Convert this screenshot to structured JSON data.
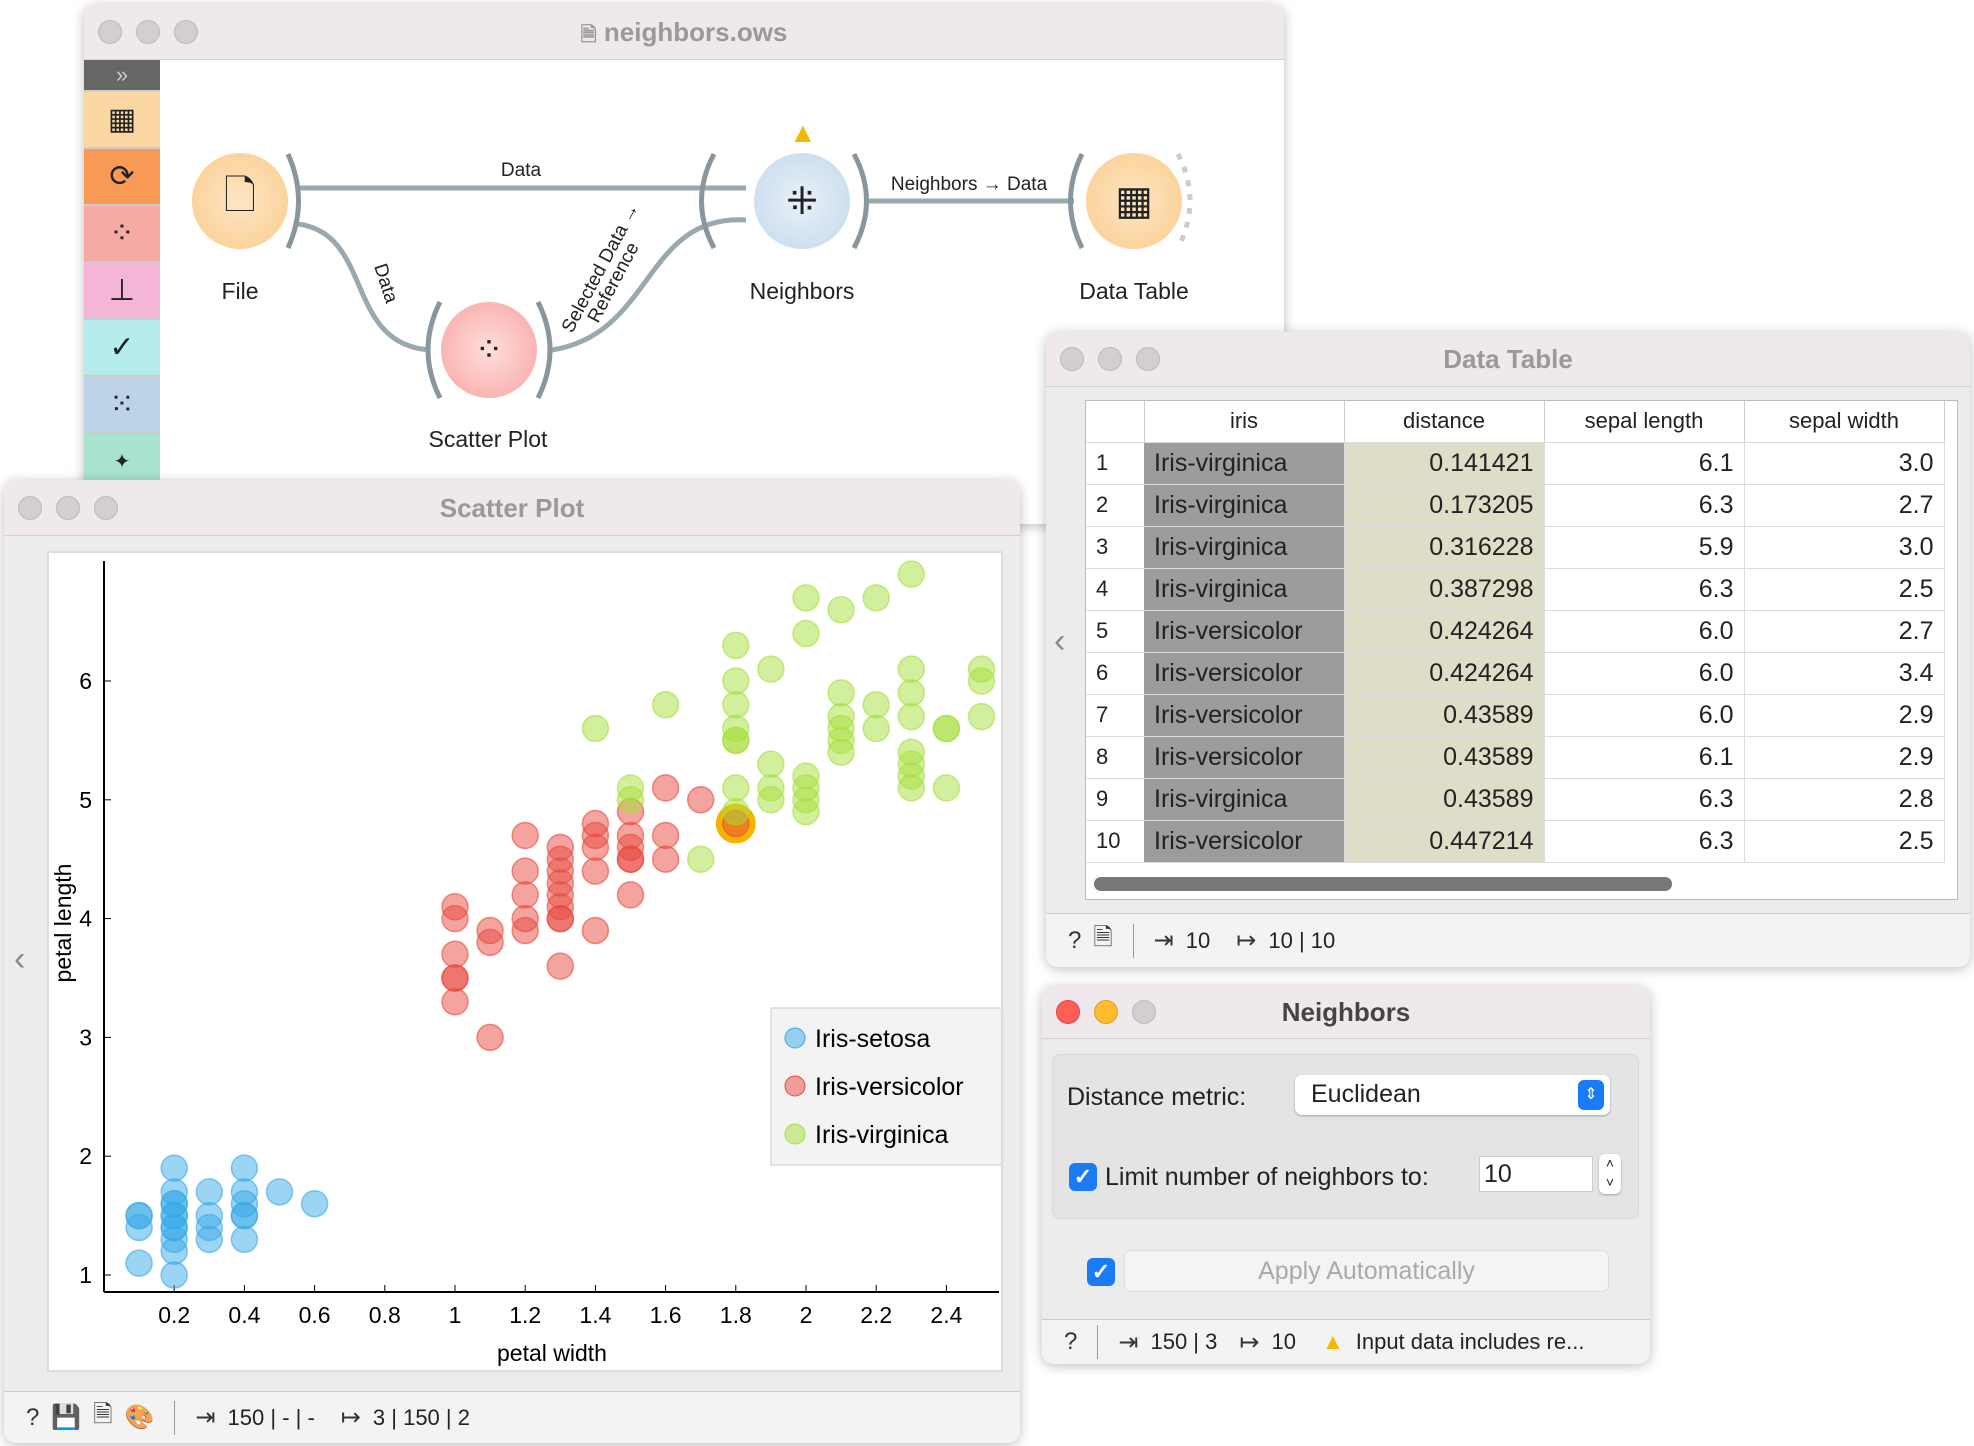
{
  "canvas": {
    "title": "neighbors.ows",
    "nodes": {
      "file": "File",
      "scatter": "Scatter Plot",
      "neighbors": "Neighbors",
      "table": "Data Table"
    },
    "links": {
      "file_neighbors": "Data",
      "file_scatter": "Data",
      "scatter_neighbors_1": "Selected Data →",
      "scatter_neighbors_2": "Reference",
      "neighbors_table": "Neighbors → Data"
    }
  },
  "scatter": {
    "title": "Scatter Plot",
    "footer": {
      "input": "150 | - | -",
      "output": "3 | 150 | 2"
    }
  },
  "chart_data": {
    "type": "scatter",
    "xlabel": "petal width",
    "ylabel": "petal length",
    "xlim": [
      0,
      2.5
    ],
    "ylim": [
      0.9,
      7
    ],
    "xticks": [
      "0.2",
      "0.4",
      "0.6",
      "0.8",
      "1",
      "1.2",
      "1.4",
      "1.6",
      "1.8",
      "2",
      "2.2",
      "2.4"
    ],
    "yticks": [
      "1",
      "2",
      "3",
      "4",
      "5",
      "6"
    ],
    "legend": "bottom-right",
    "highlighted": [
      1.8,
      4.8
    ],
    "series": [
      {
        "name": "Iris-setosa",
        "color": "#3aa9e8",
        "points": [
          [
            0.1,
            1.1
          ],
          [
            0.1,
            1.4
          ],
          [
            0.1,
            1.5
          ],
          [
            0.1,
            1.5
          ],
          [
            0.2,
            1.0
          ],
          [
            0.2,
            1.2
          ],
          [
            0.2,
            1.3
          ],
          [
            0.2,
            1.4
          ],
          [
            0.2,
            1.4
          ],
          [
            0.2,
            1.5
          ],
          [
            0.2,
            1.5
          ],
          [
            0.2,
            1.6
          ],
          [
            0.2,
            1.6
          ],
          [
            0.2,
            1.7
          ],
          [
            0.2,
            1.9
          ],
          [
            0.3,
            1.3
          ],
          [
            0.3,
            1.4
          ],
          [
            0.3,
            1.5
          ],
          [
            0.3,
            1.7
          ],
          [
            0.4,
            1.3
          ],
          [
            0.4,
            1.5
          ],
          [
            0.4,
            1.5
          ],
          [
            0.4,
            1.6
          ],
          [
            0.4,
            1.7
          ],
          [
            0.4,
            1.9
          ],
          [
            0.5,
            1.7
          ],
          [
            0.6,
            1.6
          ]
        ]
      },
      {
        "name": "Iris-versicolor",
        "color": "#e8493d",
        "points": [
          [
            1.0,
            3.3
          ],
          [
            1.0,
            3.5
          ],
          [
            1.0,
            3.5
          ],
          [
            1.0,
            3.7
          ],
          [
            1.0,
            4.0
          ],
          [
            1.0,
            4.1
          ],
          [
            1.1,
            3.0
          ],
          [
            1.1,
            3.8
          ],
          [
            1.1,
            3.9
          ],
          [
            1.2,
            3.9
          ],
          [
            1.2,
            4.0
          ],
          [
            1.2,
            4.2
          ],
          [
            1.2,
            4.4
          ],
          [
            1.2,
            4.7
          ],
          [
            1.3,
            3.6
          ],
          [
            1.3,
            4.0
          ],
          [
            1.3,
            4.0
          ],
          [
            1.3,
            4.1
          ],
          [
            1.3,
            4.2
          ],
          [
            1.3,
            4.3
          ],
          [
            1.3,
            4.4
          ],
          [
            1.3,
            4.5
          ],
          [
            1.3,
            4.6
          ],
          [
            1.4,
            3.9
          ],
          [
            1.4,
            4.4
          ],
          [
            1.4,
            4.6
          ],
          [
            1.4,
            4.7
          ],
          [
            1.4,
            4.8
          ],
          [
            1.5,
            4.2
          ],
          [
            1.5,
            4.5
          ],
          [
            1.5,
            4.5
          ],
          [
            1.5,
            4.6
          ],
          [
            1.5,
            4.7
          ],
          [
            1.5,
            4.9
          ],
          [
            1.6,
            4.5
          ],
          [
            1.6,
            4.7
          ],
          [
            1.6,
            5.1
          ],
          [
            1.7,
            5.0
          ],
          [
            1.8,
            4.8
          ]
        ]
      },
      {
        "name": "Iris-virginica",
        "color": "#a6e03c",
        "points": [
          [
            1.4,
            5.6
          ],
          [
            1.5,
            5.0
          ],
          [
            1.5,
            5.1
          ],
          [
            1.6,
            5.8
          ],
          [
            1.7,
            4.5
          ],
          [
            1.8,
            4.9
          ],
          [
            1.8,
            5.1
          ],
          [
            1.8,
            5.5
          ],
          [
            1.8,
            5.5
          ],
          [
            1.8,
            5.6
          ],
          [
            1.8,
            5.8
          ],
          [
            1.8,
            6.0
          ],
          [
            1.8,
            6.3
          ],
          [
            1.9,
            5.0
          ],
          [
            1.9,
            5.1
          ],
          [
            1.9,
            5.3
          ],
          [
            1.9,
            6.1
          ],
          [
            2.0,
            4.9
          ],
          [
            2.0,
            5.0
          ],
          [
            2.0,
            5.1
          ],
          [
            2.0,
            5.2
          ],
          [
            2.0,
            6.4
          ],
          [
            2.0,
            6.7
          ],
          [
            2.1,
            5.4
          ],
          [
            2.1,
            5.5
          ],
          [
            2.1,
            5.6
          ],
          [
            2.1,
            5.7
          ],
          [
            2.1,
            5.9
          ],
          [
            2.1,
            6.6
          ],
          [
            2.2,
            5.6
          ],
          [
            2.2,
            5.8
          ],
          [
            2.2,
            6.7
          ],
          [
            2.3,
            5.1
          ],
          [
            2.3,
            5.2
          ],
          [
            2.3,
            5.3
          ],
          [
            2.3,
            5.4
          ],
          [
            2.3,
            5.7
          ],
          [
            2.3,
            5.9
          ],
          [
            2.3,
            6.1
          ],
          [
            2.3,
            6.9
          ],
          [
            2.4,
            5.1
          ],
          [
            2.4,
            5.6
          ],
          [
            2.4,
            5.6
          ],
          [
            2.5,
            5.7
          ],
          [
            2.5,
            6.0
          ],
          [
            2.5,
            6.1
          ]
        ]
      }
    ]
  },
  "table": {
    "title": "Data Table",
    "columns": [
      "iris",
      "distance",
      "sepal length",
      "sepal width"
    ],
    "rows": [
      [
        "1",
        "Iris-virginica",
        "0.141421",
        "6.1",
        "3.0"
      ],
      [
        "2",
        "Iris-virginica",
        "0.173205",
        "6.3",
        "2.7"
      ],
      [
        "3",
        "Iris-virginica",
        "0.316228",
        "5.9",
        "3.0"
      ],
      [
        "4",
        "Iris-virginica",
        "0.387298",
        "6.3",
        "2.5"
      ],
      [
        "5",
        "Iris-versicolor",
        "0.424264",
        "6.0",
        "2.7"
      ],
      [
        "6",
        "Iris-versicolor",
        "0.424264",
        "6.0",
        "3.4"
      ],
      [
        "7",
        "Iris-versicolor",
        "0.43589",
        "6.0",
        "2.9"
      ],
      [
        "8",
        "Iris-versicolor",
        "0.43589",
        "6.1",
        "2.9"
      ],
      [
        "9",
        "Iris-virginica",
        "0.43589",
        "6.3",
        "2.8"
      ],
      [
        "10",
        "Iris-versicolor",
        "0.447214",
        "6.3",
        "2.5"
      ]
    ],
    "footer": {
      "input": "10",
      "output": "10 | 10"
    }
  },
  "neighbors": {
    "title": "Neighbors",
    "metric_label": "Distance metric:",
    "metric_value": "Euclidean",
    "limit_label": "Limit number of neighbors to:",
    "limit_value": "10",
    "limit_checked": true,
    "apply_label": "Apply Automatically",
    "apply_checked": true,
    "footer": {
      "input": "150 | 3",
      "output": "10",
      "warning": "Input data includes re..."
    }
  }
}
